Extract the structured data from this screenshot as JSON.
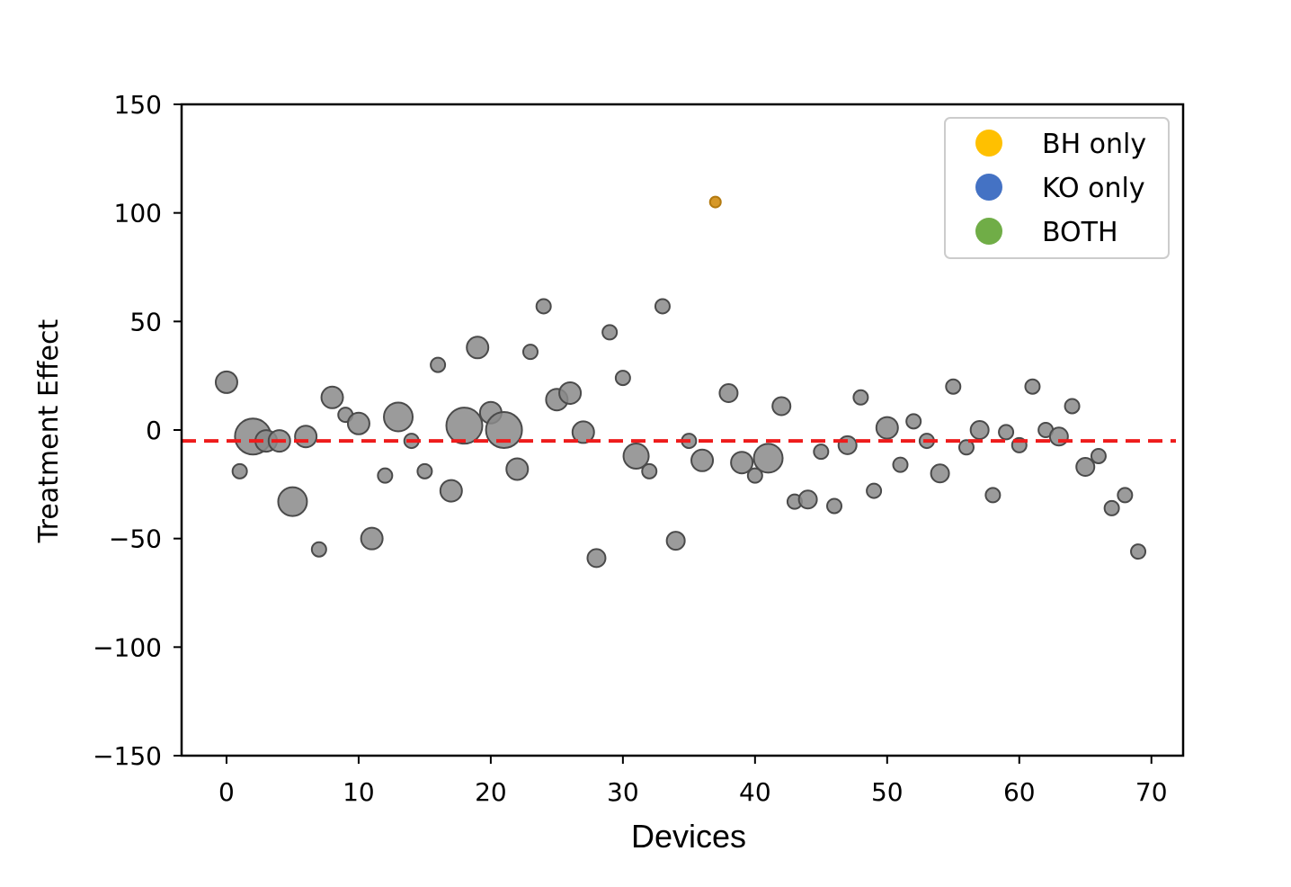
{
  "chart_data": {
    "type": "scatter",
    "xlabel": "Devices",
    "ylabel": "Treatment Effect",
    "xlim": [
      -3.4,
      72.4
    ],
    "ylim": [
      -150,
      150
    ],
    "xticks": [
      0,
      10,
      20,
      30,
      40,
      50,
      60,
      70
    ],
    "yticks": [
      -150,
      -100,
      -50,
      0,
      50,
      100,
      150
    ],
    "ytick_labels": [
      "−150",
      "−100",
      "−50",
      "0",
      "50",
      "100",
      "150"
    ],
    "reference_line": {
      "y": -5,
      "color": "#ee1c1c",
      "style": "dashed"
    },
    "legend": {
      "placement": "top-right",
      "entries": [
        {
          "label": "BH only",
          "color": "#ffc000"
        },
        {
          "label": "KO only",
          "color": "#4472c4"
        },
        {
          "label": "BOTH",
          "color": "#70ad47"
        }
      ]
    },
    "points": [
      {
        "x": 0,
        "y": 22,
        "size": 2,
        "group": "none"
      },
      {
        "x": 1,
        "y": -19,
        "size": 1,
        "group": "none"
      },
      {
        "x": 2,
        "y": -3,
        "size": 4,
        "group": "none"
      },
      {
        "x": 3,
        "y": -5,
        "size": 2,
        "group": "none"
      },
      {
        "x": 4,
        "y": -5,
        "size": 2,
        "group": "none"
      },
      {
        "x": 5,
        "y": -33,
        "size": 3,
        "group": "none"
      },
      {
        "x": 6,
        "y": -3,
        "size": 2,
        "group": "none"
      },
      {
        "x": 7,
        "y": -55,
        "size": 1,
        "group": "none"
      },
      {
        "x": 8,
        "y": 15,
        "size": 2,
        "group": "none"
      },
      {
        "x": 9,
        "y": 7,
        "size": 1,
        "group": "none"
      },
      {
        "x": 10,
        "y": 3,
        "size": 2,
        "group": "none"
      },
      {
        "x": 11,
        "y": -50,
        "size": 2,
        "group": "none"
      },
      {
        "x": 12,
        "y": -21,
        "size": 1,
        "group": "none"
      },
      {
        "x": 13,
        "y": 6,
        "size": 3,
        "group": "none"
      },
      {
        "x": 14,
        "y": -5,
        "size": 1,
        "group": "none"
      },
      {
        "x": 15,
        "y": -19,
        "size": 1,
        "group": "none"
      },
      {
        "x": 16,
        "y": 30,
        "size": 1,
        "group": "none"
      },
      {
        "x": 17,
        "y": -28,
        "size": 2,
        "group": "none"
      },
      {
        "x": 18,
        "y": 2,
        "size": 4,
        "group": "none"
      },
      {
        "x": 19,
        "y": 38,
        "size": 2,
        "group": "none"
      },
      {
        "x": 20,
        "y": 8,
        "size": 2,
        "group": "none"
      },
      {
        "x": 21,
        "y": 0,
        "size": 4,
        "group": "none"
      },
      {
        "x": 22,
        "y": -18,
        "size": 2,
        "group": "none"
      },
      {
        "x": 23,
        "y": 36,
        "size": 1,
        "group": "none"
      },
      {
        "x": 24,
        "y": 57,
        "size": 1,
        "group": "none"
      },
      {
        "x": 25,
        "y": 14,
        "size": 2,
        "group": "none"
      },
      {
        "x": 26,
        "y": 17,
        "size": 2,
        "group": "none"
      },
      {
        "x": 27,
        "y": -1,
        "size": 2,
        "group": "none"
      },
      {
        "x": 28,
        "y": -59,
        "size": 1.5,
        "group": "none"
      },
      {
        "x": 29,
        "y": 45,
        "size": 1,
        "group": "none"
      },
      {
        "x": 30,
        "y": 24,
        "size": 1,
        "group": "none"
      },
      {
        "x": 31,
        "y": -12,
        "size": 2.5,
        "group": "none"
      },
      {
        "x": 32,
        "y": -19,
        "size": 1,
        "group": "none"
      },
      {
        "x": 33,
        "y": 57,
        "size": 1,
        "group": "none"
      },
      {
        "x": 34,
        "y": -51,
        "size": 1.5,
        "group": "none"
      },
      {
        "x": 35,
        "y": -5,
        "size": 1,
        "group": "none"
      },
      {
        "x": 36,
        "y": -14,
        "size": 2,
        "group": "none"
      },
      {
        "x": 37,
        "y": 105,
        "size": 1,
        "group": "BH only"
      },
      {
        "x": 38,
        "y": 17,
        "size": 1.5,
        "group": "none"
      },
      {
        "x": 39,
        "y": -15,
        "size": 2,
        "group": "none"
      },
      {
        "x": 40,
        "y": -21,
        "size": 1,
        "group": "none"
      },
      {
        "x": 41,
        "y": -13,
        "size": 3,
        "group": "none"
      },
      {
        "x": 42,
        "y": 11,
        "size": 1.5,
        "group": "none"
      },
      {
        "x": 43,
        "y": -33,
        "size": 1,
        "group": "none"
      },
      {
        "x": 44,
        "y": -32,
        "size": 1.5,
        "group": "none"
      },
      {
        "x": 45,
        "y": -10,
        "size": 1,
        "group": "none"
      },
      {
        "x": 46,
        "y": -35,
        "size": 1,
        "group": "none"
      },
      {
        "x": 47,
        "y": -7,
        "size": 1.5,
        "group": "none"
      },
      {
        "x": 48,
        "y": 15,
        "size": 1,
        "group": "none"
      },
      {
        "x": 49,
        "y": -28,
        "size": 1,
        "group": "none"
      },
      {
        "x": 50,
        "y": 1,
        "size": 2,
        "group": "none"
      },
      {
        "x": 51,
        "y": -16,
        "size": 1,
        "group": "none"
      },
      {
        "x": 52,
        "y": 4,
        "size": 1,
        "group": "none"
      },
      {
        "x": 53,
        "y": -5,
        "size": 1,
        "group": "none"
      },
      {
        "x": 54,
        "y": -20,
        "size": 1.5,
        "group": "none"
      },
      {
        "x": 55,
        "y": 20,
        "size": 1,
        "group": "none"
      },
      {
        "x": 56,
        "y": -8,
        "size": 1,
        "group": "none"
      },
      {
        "x": 57,
        "y": 0,
        "size": 1.5,
        "group": "none"
      },
      {
        "x": 58,
        "y": -30,
        "size": 1,
        "group": "none"
      },
      {
        "x": 59,
        "y": -1,
        "size": 1,
        "group": "none"
      },
      {
        "x": 60,
        "y": -7,
        "size": 1,
        "group": "none"
      },
      {
        "x": 61,
        "y": 20,
        "size": 1,
        "group": "none"
      },
      {
        "x": 62,
        "y": 0,
        "size": 1,
        "group": "none"
      },
      {
        "x": 63,
        "y": -3,
        "size": 1.5,
        "group": "none"
      },
      {
        "x": 64,
        "y": 11,
        "size": 1,
        "group": "none"
      },
      {
        "x": 65,
        "y": -17,
        "size": 1.5,
        "group": "none"
      },
      {
        "x": 66,
        "y": -12,
        "size": 1,
        "group": "none"
      },
      {
        "x": 67,
        "y": -36,
        "size": 1,
        "group": "none"
      },
      {
        "x": 68,
        "y": -30,
        "size": 1,
        "group": "none"
      },
      {
        "x": 69,
        "y": -56,
        "size": 1,
        "group": "none"
      }
    ]
  }
}
